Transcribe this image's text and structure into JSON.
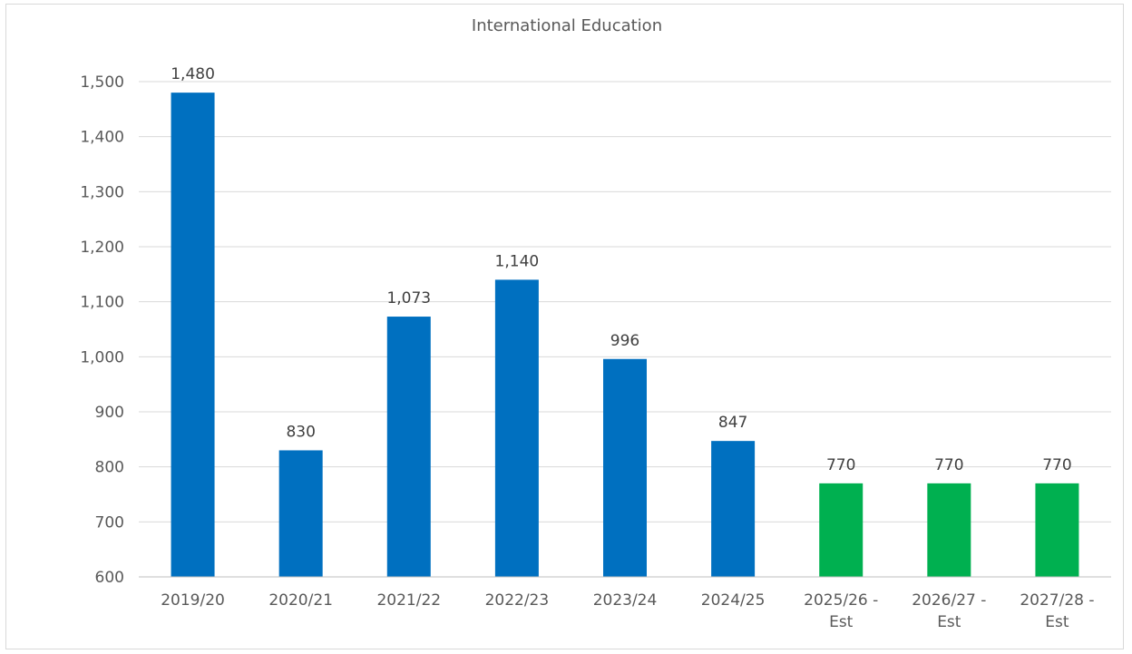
{
  "chart_data": {
    "type": "bar",
    "title": "International Education",
    "categories": [
      [
        "2019/20"
      ],
      [
        "2020/21"
      ],
      [
        "2021/22"
      ],
      [
        "2022/23"
      ],
      [
        "2023/24"
      ],
      [
        "2024/25"
      ],
      [
        "2025/26 -",
        "Est"
      ],
      [
        "2026/27 -",
        "Est"
      ],
      [
        "2027/28 -",
        "Est"
      ]
    ],
    "values": [
      1480,
      830,
      1073,
      1140,
      996,
      847,
      770,
      770,
      770
    ],
    "value_labels": [
      "1,480",
      "830",
      "1,073",
      "1,140",
      "996",
      "847",
      "770",
      "770",
      "770"
    ],
    "bar_colors": [
      "#0070c0",
      "#0070c0",
      "#0070c0",
      "#0070c0",
      "#0070c0",
      "#0070c0",
      "#00b050",
      "#00b050",
      "#00b050"
    ],
    "ylim": [
      600,
      1500
    ],
    "yticks": [
      600,
      700,
      800,
      900,
      1000,
      1100,
      1200,
      1300,
      1400,
      1500
    ],
    "ytick_labels": [
      "600",
      "700",
      "800",
      "900",
      "1,000",
      "1,100",
      "1,200",
      "1,300",
      "1,400",
      "1,500"
    ],
    "xlabel": "",
    "ylabel": "",
    "grid": true,
    "legend": "none"
  }
}
